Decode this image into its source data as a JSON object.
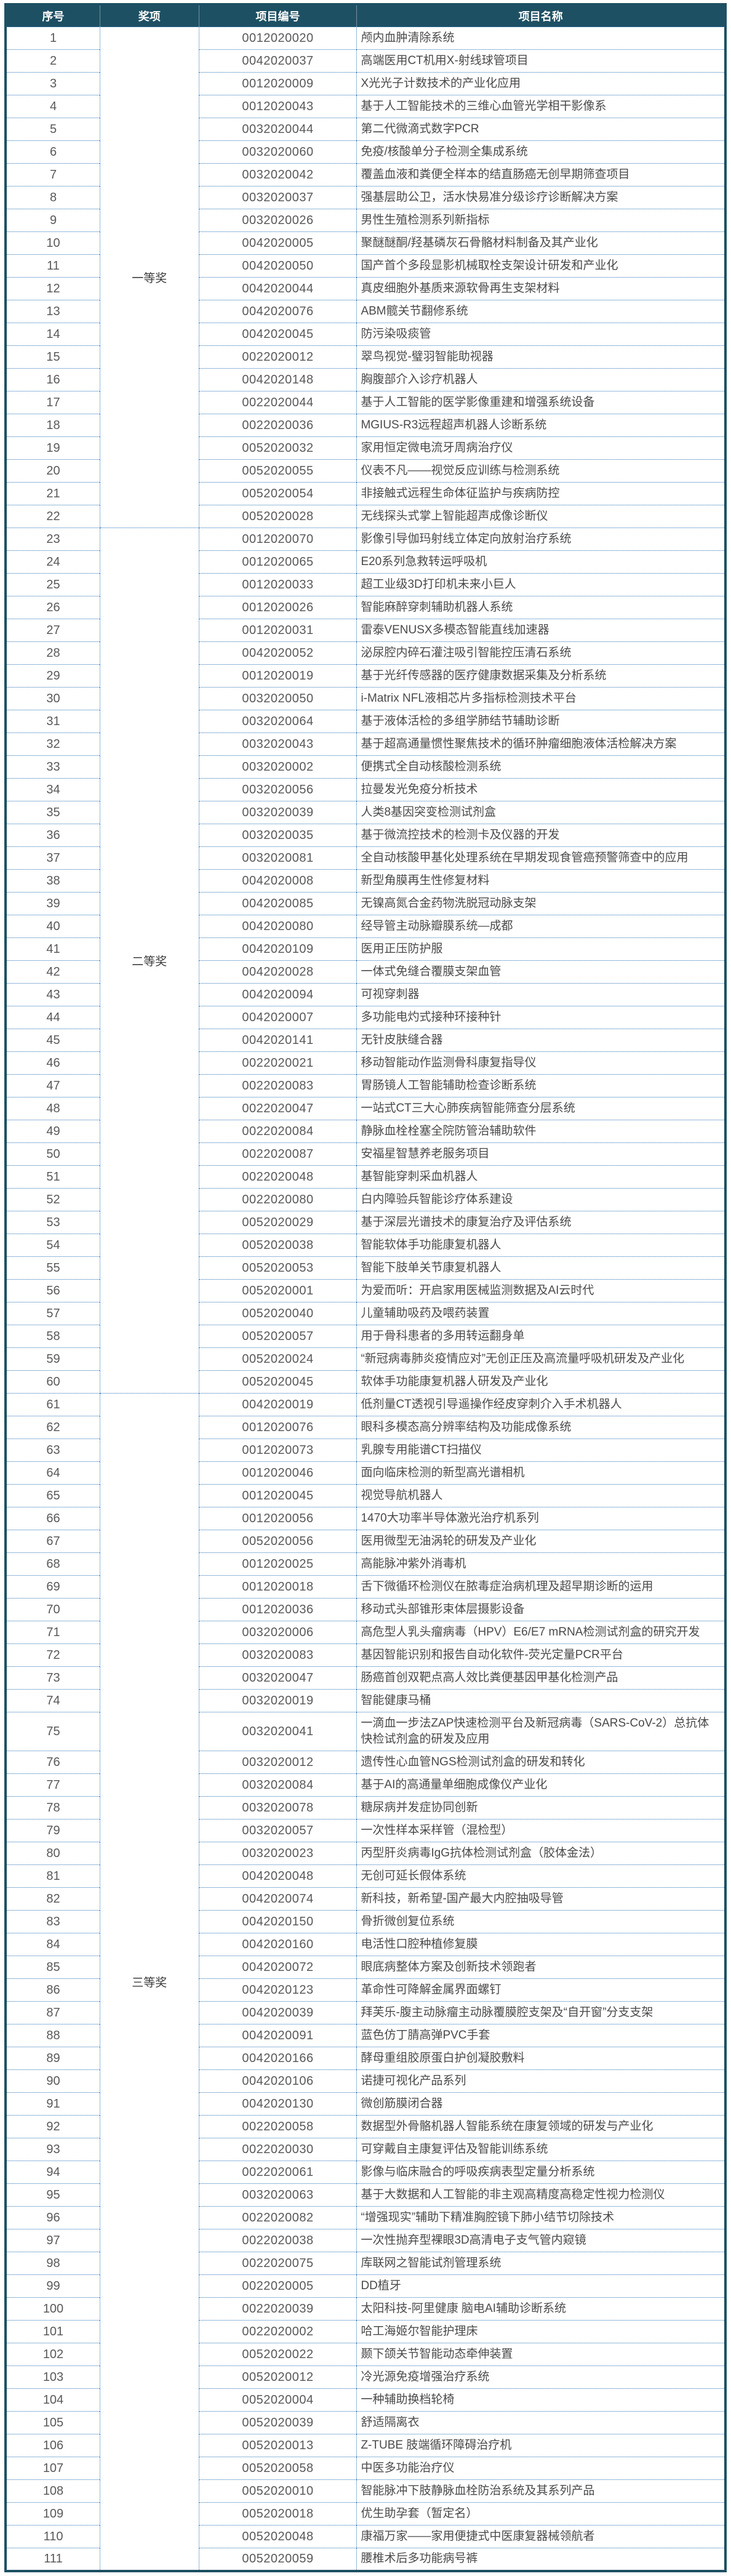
{
  "table": {
    "columns": [
      "序号",
      "奖项",
      "项目编号",
      "项目名称"
    ],
    "award_groups": [
      {
        "label": "一等奖",
        "from": 1,
        "to": 22
      },
      {
        "label": "二等奖",
        "from": 23,
        "to": 60
      },
      {
        "label": "三等奖",
        "from": 61,
        "to": 111
      }
    ],
    "tall_rows": [
      75
    ],
    "rows": [
      {
        "no": 1,
        "code": "0012020020",
        "name": "颅内血肿清除系统"
      },
      {
        "no": 2,
        "code": "0042020037",
        "name": "高端医用CT机用X-射线球管项目"
      },
      {
        "no": 3,
        "code": "0012020009",
        "name": "X光光子计数技术的产业化应用"
      },
      {
        "no": 4,
        "code": "0012020043",
        "name": "基于人工智能技术的三维心血管光学相干影像系"
      },
      {
        "no": 5,
        "code": "0032020044",
        "name": "第二代微滴式数字PCR"
      },
      {
        "no": 6,
        "code": "0032020060",
        "name": "免疫/核酸单分子检测全集成系统"
      },
      {
        "no": 7,
        "code": "0032020042",
        "name": "覆盖血液和粪便全样本的结直肠癌无创早期筛查项目"
      },
      {
        "no": 8,
        "code": "0032020037",
        "name": "强基层助公卫，活水快易准分级诊疗诊断解决方案"
      },
      {
        "no": 9,
        "code": "0032020026",
        "name": "男性生殖检测系列新指标"
      },
      {
        "no": 10,
        "code": "0042020005",
        "name": "聚醚醚酮/羟基磷灰石骨骼材料制备及其产业化"
      },
      {
        "no": 11,
        "code": "0042020050",
        "name": "国产首个多段显影机械取栓支架设计研发和产业化"
      },
      {
        "no": 12,
        "code": "0042020044",
        "name": "真皮细胞外基质来源软骨再生支架材料"
      },
      {
        "no": 13,
        "code": "0042020076",
        "name": "ABM髋关节翻修系统"
      },
      {
        "no": 14,
        "code": "0042020045",
        "name": "防污染吸痰管"
      },
      {
        "no": 15,
        "code": "0022020012",
        "name": "翠鸟视觉-璧羽智能助视器"
      },
      {
        "no": 16,
        "code": "0042020148",
        "name": "胸腹部介入诊疗机器人"
      },
      {
        "no": 17,
        "code": "0022020044",
        "name": "基于人工智能的医学影像重建和增强系统设备"
      },
      {
        "no": 18,
        "code": "0022020036",
        "name": "MGIUS-R3远程超声机器人诊断系统"
      },
      {
        "no": 19,
        "code": "0052020032",
        "name": "家用恒定微电流牙周病治疗仪"
      },
      {
        "no": 20,
        "code": "0052020055",
        "name": "仪表不凡——视觉反应训练与检测系统"
      },
      {
        "no": 21,
        "code": "0052020054",
        "name": "非接触式远程生命体征监护与疾病防控"
      },
      {
        "no": 22,
        "code": "0052020028",
        "name": "无线探头式掌上智能超声成像诊断仪"
      },
      {
        "no": 23,
        "code": "0012020070",
        "name": "影像引导伽玛射线立体定向放射治疗系统"
      },
      {
        "no": 24,
        "code": "0012020065",
        "name": "E20系列急救转运呼吸机"
      },
      {
        "no": 25,
        "code": "0012020033",
        "name": "超工业级3D打印机未来小巨人"
      },
      {
        "no": 26,
        "code": "0012020026",
        "name": "智能麻醉穿刺辅助机器人系统"
      },
      {
        "no": 27,
        "code": "0012020031",
        "name": "雷泰VENUSX多模态智能直线加速器"
      },
      {
        "no": 28,
        "code": "0042020052",
        "name": "泌尿腔内碎石灌注吸引智能控压清石系统"
      },
      {
        "no": 29,
        "code": "0012020019",
        "name": "基于光纤传感器的医疗健康数据采集及分析系统"
      },
      {
        "no": 30,
        "code": "0032020050",
        "name": "i-Matrix NFL液相芯片多指标检测技术平台"
      },
      {
        "no": 31,
        "code": "0032020064",
        "name": "基于液体活检的多组学肺结节辅助诊断"
      },
      {
        "no": 32,
        "code": "0032020043",
        "name": "基于超高通量惯性聚焦技术的循环肿瘤细胞液体活检解决方案"
      },
      {
        "no": 33,
        "code": "0032020002",
        "name": "便携式全自动核酸检测系统"
      },
      {
        "no": 34,
        "code": "0032020056",
        "name": "拉曼发光免疫分析技术"
      },
      {
        "no": 35,
        "code": "0032020039",
        "name": "人类8基因突变检测试剂盒"
      },
      {
        "no": 36,
        "code": "0032020035",
        "name": "基于微流控技术的检测卡及仪器的开发"
      },
      {
        "no": 37,
        "code": "0032020081",
        "name": "全自动核酸甲基化处理系统在早期发现食管癌预警筛查中的应用"
      },
      {
        "no": 38,
        "code": "0042020008",
        "name": "新型角膜再生性修复材料"
      },
      {
        "no": 39,
        "code": "0042020085",
        "name": "无镍高氮合金药物洗脱冠动脉支架"
      },
      {
        "no": 40,
        "code": "0042020080",
        "name": "经导管主动脉瓣膜系统—成都"
      },
      {
        "no": 41,
        "code": "0042020109",
        "name": "医用正压防护服"
      },
      {
        "no": 42,
        "code": "0042020028",
        "name": "一体式免缝合覆膜支架血管"
      },
      {
        "no": 43,
        "code": "0042020094",
        "name": "可视穿刺器"
      },
      {
        "no": 44,
        "code": "0042020007",
        "name": "多功能电灼式接种环接种针"
      },
      {
        "no": 45,
        "code": "0042020141",
        "name": "无针皮肤缝合器"
      },
      {
        "no": 46,
        "code": "0022020021",
        "name": "移动智能动作监测骨科康复指导仪"
      },
      {
        "no": 47,
        "code": "0022020083",
        "name": "胃肠镜人工智能辅助检查诊断系统"
      },
      {
        "no": 48,
        "code": "0022020047",
        "name": "一站式CT三大心肺疾病智能筛查分层系统"
      },
      {
        "no": 49,
        "code": "0022020084",
        "name": "静脉血栓栓塞全院防管治辅助软件"
      },
      {
        "no": 50,
        "code": "0022020087",
        "name": "安福星智慧养老服务项目"
      },
      {
        "no": 51,
        "code": "0022020048",
        "name": "基智能穿刺采血机器人"
      },
      {
        "no": 52,
        "code": "0022020080",
        "name": "白内障验兵智能诊疗体系建设"
      },
      {
        "no": 53,
        "code": "0052020029",
        "name": "基于深层光谱技术的康复治疗及评估系统"
      },
      {
        "no": 54,
        "code": "0052020038",
        "name": "智能软体手功能康复机器人"
      },
      {
        "no": 55,
        "code": "0052020053",
        "name": "智能下肢单关节康复机器人"
      },
      {
        "no": 56,
        "code": "0052020001",
        "name": "为爱而听：开启家用医械监测数据及AI云时代"
      },
      {
        "no": 57,
        "code": "0052020040",
        "name": "儿童辅助吸药及喂药装置"
      },
      {
        "no": 58,
        "code": "0052020057",
        "name": "用于骨科患者的多用转运翻身单"
      },
      {
        "no": 59,
        "code": "0052020024",
        "name": "“新冠病毒肺炎疫情应对”无创正压及高流量呼吸机研发及产业化"
      },
      {
        "no": 60,
        "code": "0052020045",
        "name": "软体手功能康复机器人研发及产业化"
      },
      {
        "no": 61,
        "code": "0042020019",
        "name": "低剂量CT透视引导遥操作经皮穿刺介入手术机器人"
      },
      {
        "no": 62,
        "code": "0012020076",
        "name": "眼科多模态高分辨率结构及功能成像系统"
      },
      {
        "no": 63,
        "code": "0012020073",
        "name": "乳腺专用能谱CT扫描仪"
      },
      {
        "no": 64,
        "code": "0012020046",
        "name": "面向临床检测的新型高光谱相机"
      },
      {
        "no": 65,
        "code": "0012020045",
        "name": "视觉导航机器人"
      },
      {
        "no": 66,
        "code": "0012020056",
        "name": "1470大功率半导体激光治疗机系列"
      },
      {
        "no": 67,
        "code": "0052020056",
        "name": "医用微型无油涡轮的研发及产业化"
      },
      {
        "no": 68,
        "code": "0012020025",
        "name": "高能脉冲紫外消毒机"
      },
      {
        "no": 69,
        "code": "0012020018",
        "name": "舌下微循环检测仪在脓毒症治病机理及超早期诊断的运用"
      },
      {
        "no": 70,
        "code": "0012020036",
        "name": "移动式头部锥形束体层摄影设备"
      },
      {
        "no": 71,
        "code": "0032020006",
        "name": "高危型人乳头瘤病毒（HPV）E6/E7 mRNA检测试剂盒的研究开发"
      },
      {
        "no": 72,
        "code": "0032020083",
        "name": "基因智能识别和报告自动化软件-荧光定量PCR平台"
      },
      {
        "no": 73,
        "code": "0032020047",
        "name": "肠癌首创双靶点高人效比粪便基因甲基化检测产品"
      },
      {
        "no": 74,
        "code": "0032020019",
        "name": "智能健康马桶"
      },
      {
        "no": 75,
        "code": "0032020041",
        "name": "一滴血一步法ZAP快速检测平台及新冠病毒（SARS-CoV-2）总抗体快检试剂盒的研发及应用"
      },
      {
        "no": 76,
        "code": "0032020012",
        "name": "遗传性心血管NGS检测试剂盒的研发和转化"
      },
      {
        "no": 77,
        "code": "0032020084",
        "name": "基于AI的高通量单细胞成像仪产业化"
      },
      {
        "no": 78,
        "code": "0032020078",
        "name": "糖尿病并发症协同创新"
      },
      {
        "no": 79,
        "code": "0032020057",
        "name": "一次性样本采样管（混检型）"
      },
      {
        "no": 80,
        "code": "0032020023",
        "name": "丙型肝炎病毒IgG抗体检测试剂盒（胶体金法）"
      },
      {
        "no": 81,
        "code": "0042020048",
        "name": "无创可延长假体系统"
      },
      {
        "no": 82,
        "code": "0042020074",
        "name": "新科技，新希望-国产最大内腔抽吸导管"
      },
      {
        "no": 83,
        "code": "0042020150",
        "name": "骨折微创复位系统"
      },
      {
        "no": 84,
        "code": "0042020160",
        "name": "电活性口腔种植修复膜"
      },
      {
        "no": 85,
        "code": "0042020072",
        "name": "眼底病整体方案及创新技术领跑者"
      },
      {
        "no": 86,
        "code": "0042020123",
        "name": "革命性可降解金属界面螺钉"
      },
      {
        "no": 87,
        "code": "0042020039",
        "name": "拜芙乐-腹主动脉瘤主动脉覆膜腔支架及“自开窗”分支支架"
      },
      {
        "no": 88,
        "code": "0042020091",
        "name": "蓝色仿丁腈高弹PVC手套"
      },
      {
        "no": 89,
        "code": "0042020166",
        "name": "酵母重组胶原蛋白护创凝胶敷料"
      },
      {
        "no": 90,
        "code": "0042020106",
        "name": "诺捷可视化产品系列"
      },
      {
        "no": 91,
        "code": "0042020130",
        "name": "微创筋膜闭合器"
      },
      {
        "no": 92,
        "code": "0022020058",
        "name": "数据型外骨骼机器人智能系统在康复领域的研发与产业化"
      },
      {
        "no": 93,
        "code": "0022020030",
        "name": "可穿戴自主康复评估及智能训练系统"
      },
      {
        "no": 94,
        "code": "0022020061",
        "name": "影像与临床融合的呼吸疾病表型定量分析系统"
      },
      {
        "no": 95,
        "code": "0032020063",
        "name": "基于大数据和人工智能的非主观高精度高稳定性视力检测仪"
      },
      {
        "no": 96,
        "code": "0022020082",
        "name": "“增强现实”辅助下精准胸腔镜下肺小结节切除技术"
      },
      {
        "no": 97,
        "code": "0022020038",
        "name": "一次性抛弃型裸眼3D高清电子支气管内窥镜"
      },
      {
        "no": 98,
        "code": "0022020075",
        "name": "库联网之智能试剂管理系统"
      },
      {
        "no": 99,
        "code": "0022020005",
        "name": "DD植牙"
      },
      {
        "no": 100,
        "code": "0022020039",
        "name": "太阳科技-阿里健康 脑电AI辅助诊断系统"
      },
      {
        "no": 101,
        "code": "0022020002",
        "name": "哈工海姬尔智能护理床"
      },
      {
        "no": 102,
        "code": "0052020022",
        "name": "颞下颌关节智能动态牵伸装置"
      },
      {
        "no": 103,
        "code": "0052020012",
        "name": "冷光源免疫增强治疗系统"
      },
      {
        "no": 104,
        "code": "0052020004",
        "name": "一种辅助换档轮椅"
      },
      {
        "no": 105,
        "code": "0052020039",
        "name": "舒适隔离衣"
      },
      {
        "no": 106,
        "code": "0052020013",
        "name": "Z-TUBE 肢端循环障碍治疗机"
      },
      {
        "no": 107,
        "code": "0052020058",
        "name": "中医多功能治疗仪"
      },
      {
        "no": 108,
        "code": "0052020010",
        "name": "智能脉冲下肢静脉血栓防治系统及其系列产品"
      },
      {
        "no": 109,
        "code": "0052020018",
        "name": "优生助孕套（暂定名）"
      },
      {
        "no": 110,
        "code": "0052020048",
        "name": "康福万家——家用便捷式中医康复器械领航者"
      },
      {
        "no": 111,
        "code": "0052020059",
        "name": "腰椎术后多功能病号裤"
      }
    ]
  },
  "appearance": {
    "header_bg": "#1E5063",
    "header_text": "#FFFFFF",
    "outer_border": "#1E5063",
    "grid_dot_color": "#2E74B5",
    "serial_text": "#595959",
    "code_text": "#595959",
    "name_text": "#4A4A4A",
    "award_text": "#3D3D3D",
    "page_bg": "#FFFFFF"
  }
}
